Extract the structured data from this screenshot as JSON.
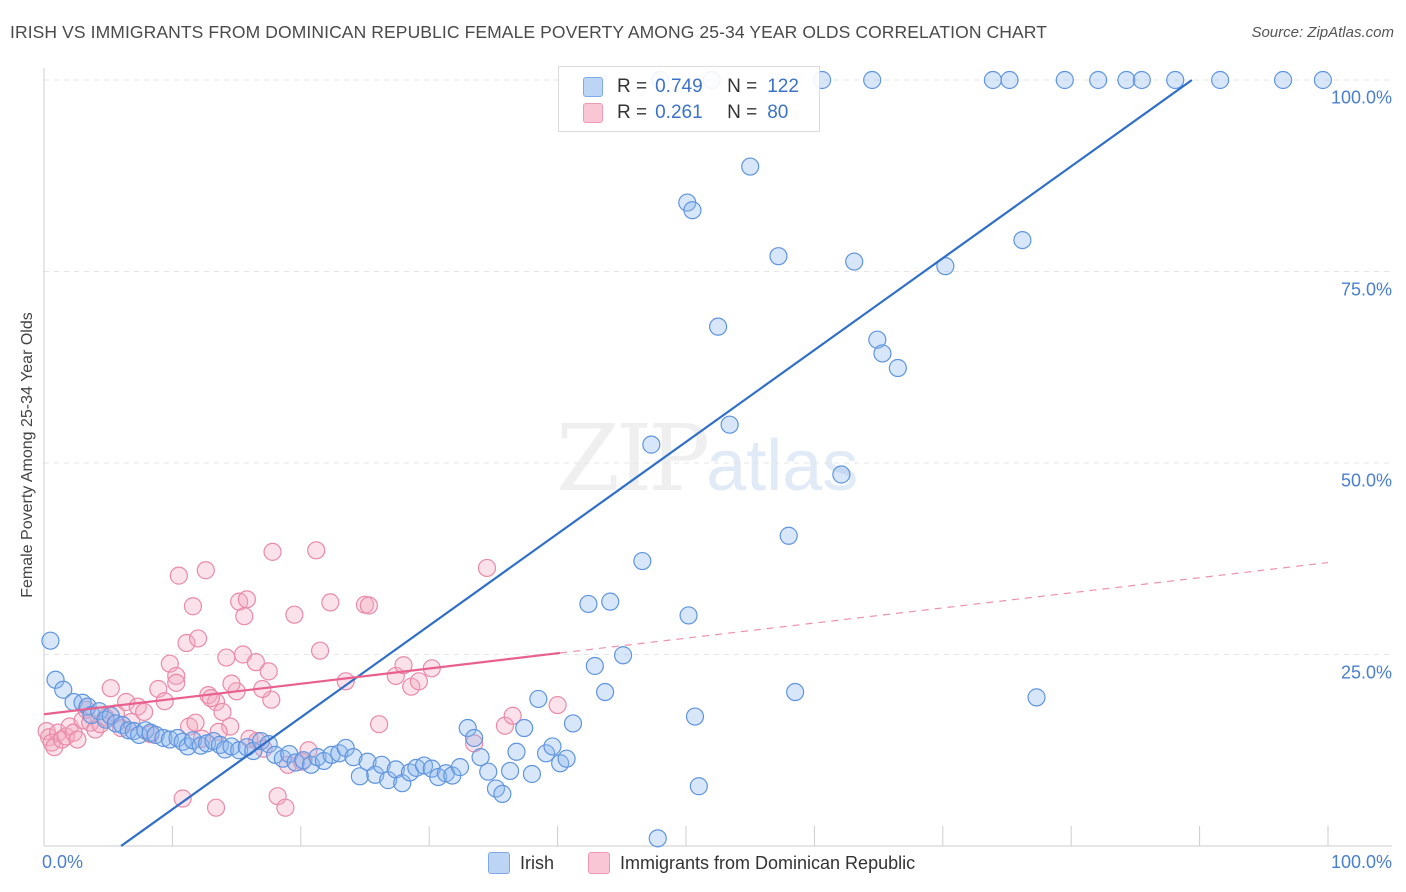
{
  "title": "IRISH VS IMMIGRANTS FROM DOMINICAN REPUBLIC FEMALE POVERTY AMONG 25-34 YEAR OLDS CORRELATION CHART",
  "source": "Source: ZipAtlas.com",
  "watermark": {
    "zip": "ZIP",
    "atlas": "atlas"
  },
  "colors": {
    "irish": "#8fb8ee",
    "irish_line": "#2f6fca",
    "dominican": "#f4a9c0",
    "dominican_line": "#e8608e",
    "tick_text": "#4a7fd0",
    "grid": "#e4e4e4"
  },
  "legend_top": [
    {
      "r_label": "R =",
      "r_value": "0.749",
      "n_label": "N =",
      "n_value": "122"
    },
    {
      "r_label": "R =",
      "r_value": "0.261",
      "n_label": "N =",
      "n_value": "80"
    }
  ],
  "chart_data": {
    "type": "scatter",
    "title": "IRISH VS IMMIGRANTS FROM DOMINICAN REPUBLIC FEMALE POVERTY AMONG 25-34 YEAR OLDS CORRELATION CHART",
    "xlabel": "",
    "ylabel": "Female Poverty Among 25-34 Year Olds",
    "xlim": [
      0,
      100
    ],
    "ylim": [
      0,
      100
    ],
    "x_ticks": [
      "0.0%",
      "100.0%"
    ],
    "y_ticks": [
      {
        "value": 100,
        "label": "100.0%"
      },
      {
        "value": 75,
        "label": "75.0%"
      },
      {
        "value": 50,
        "label": "50.0%"
      },
      {
        "value": 25,
        "label": "25.0%"
      }
    ],
    "grid": true,
    "legend_position": "bottom",
    "series": [
      {
        "name": "Irish",
        "r": 0.749,
        "n": 122,
        "trend": {
          "x1": 6,
          "y1": 0,
          "x2": 89.4,
          "y2": 100,
          "style": "solid"
        },
        "points": [
          [
            0.5,
            26.8
          ],
          [
            0.9,
            21.7
          ],
          [
            1.5,
            20.4
          ],
          [
            2.3,
            18.8
          ],
          [
            3.0,
            18.7
          ],
          [
            3.4,
            18.2
          ],
          [
            3.7,
            17.1
          ],
          [
            4.3,
            17.6
          ],
          [
            4.8,
            16.5
          ],
          [
            5.2,
            17.0
          ],
          [
            5.6,
            16.0
          ],
          [
            6.1,
            15.8
          ],
          [
            6.6,
            15.1
          ],
          [
            7.0,
            15.0
          ],
          [
            7.4,
            14.5
          ],
          [
            7.9,
            15.1
          ],
          [
            8.3,
            14.8
          ],
          [
            8.7,
            14.5
          ],
          [
            9.3,
            14.1
          ],
          [
            9.8,
            13.9
          ],
          [
            10.4,
            14.1
          ],
          [
            10.8,
            13.6
          ],
          [
            11.2,
            13.0
          ],
          [
            11.6,
            13.8
          ],
          [
            12.2,
            13.1
          ],
          [
            12.7,
            13.4
          ],
          [
            13.2,
            13.7
          ],
          [
            13.7,
            13.2
          ],
          [
            14.1,
            12.6
          ],
          [
            14.6,
            13.0
          ],
          [
            15.2,
            12.5
          ],
          [
            15.8,
            12.9
          ],
          [
            16.3,
            12.4
          ],
          [
            16.9,
            13.7
          ],
          [
            17.5,
            13.3
          ],
          [
            18.0,
            11.9
          ],
          [
            18.6,
            11.4
          ],
          [
            19.1,
            12.0
          ],
          [
            19.6,
            10.9
          ],
          [
            20.2,
            11.2
          ],
          [
            20.8,
            10.6
          ],
          [
            21.3,
            11.6
          ],
          [
            21.8,
            11.1
          ],
          [
            22.4,
            11.9
          ],
          [
            23.0,
            12.1
          ],
          [
            23.5,
            12.8
          ],
          [
            24.1,
            11.6
          ],
          [
            24.6,
            9.1
          ],
          [
            25.2,
            11.0
          ],
          [
            25.8,
            9.3
          ],
          [
            26.3,
            10.6
          ],
          [
            26.8,
            8.6
          ],
          [
            27.4,
            10.0
          ],
          [
            27.9,
            8.2
          ],
          [
            28.5,
            9.6
          ],
          [
            29.0,
            10.2
          ],
          [
            29.6,
            10.5
          ],
          [
            30.2,
            10.1
          ],
          [
            30.7,
            9.0
          ],
          [
            31.3,
            9.5
          ],
          [
            31.8,
            9.2
          ],
          [
            32.4,
            10.3
          ],
          [
            33.0,
            15.4
          ],
          [
            33.5,
            14.1
          ],
          [
            34.0,
            11.6
          ],
          [
            34.6,
            9.7
          ],
          [
            35.2,
            7.5
          ],
          [
            35.7,
            6.8
          ],
          [
            36.3,
            9.8
          ],
          [
            36.8,
            12.3
          ],
          [
            37.4,
            15.4
          ],
          [
            38.0,
            9.4
          ],
          [
            38.5,
            19.2
          ],
          [
            39.1,
            12.1
          ],
          [
            39.6,
            13.0
          ],
          [
            40.2,
            10.8
          ],
          [
            40.7,
            11.4
          ],
          [
            41.2,
            16.0
          ],
          [
            42.4,
            31.6
          ],
          [
            42.9,
            23.5
          ],
          [
            43.7,
            20.1
          ],
          [
            44.1,
            31.9
          ],
          [
            45.1,
            24.9
          ],
          [
            46.6,
            37.2
          ],
          [
            47.8,
            1.0
          ],
          [
            50.2,
            30.1
          ],
          [
            50.7,
            16.9
          ],
          [
            51.0,
            7.8
          ],
          [
            47.3,
            52.4
          ],
          [
            48.0,
            100
          ],
          [
            50.1,
            84.0
          ],
          [
            50.5,
            83.0
          ],
          [
            52.0,
            100
          ],
          [
            52.5,
            67.8
          ],
          [
            53.4,
            55.0
          ],
          [
            55.0,
            88.7
          ],
          [
            57.2,
            77.0
          ],
          [
            58.0,
            40.5
          ],
          [
            58.5,
            20.1
          ],
          [
            60.6,
            100
          ],
          [
            62.1,
            48.5
          ],
          [
            63.1,
            76.3
          ],
          [
            64.5,
            100
          ],
          [
            64.9,
            66.1
          ],
          [
            65.3,
            64.3
          ],
          [
            66.5,
            62.4
          ],
          [
            70.2,
            75.7
          ],
          [
            73.9,
            100
          ],
          [
            75.2,
            100
          ],
          [
            76.2,
            79.1
          ],
          [
            77.3,
            19.4
          ],
          [
            79.5,
            100
          ],
          [
            82.1,
            100
          ],
          [
            84.3,
            100
          ],
          [
            85.5,
            100
          ],
          [
            88.1,
            100
          ],
          [
            91.6,
            100
          ],
          [
            96.5,
            100
          ],
          [
            99.6,
            100
          ]
        ]
      },
      {
        "name": "Immigrants from Dominican Republic",
        "r": 0.261,
        "n": 80,
        "trend": {
          "x1": 0,
          "y1": 17.2,
          "x2": 40.2,
          "y2": 25.2,
          "x_ext": 100,
          "y_ext": 37.0,
          "style": "solid then dashed"
        },
        "points": [
          [
            0.2,
            15.0
          ],
          [
            0.4,
            14.2
          ],
          [
            0.6,
            13.5
          ],
          [
            0.8,
            12.9
          ],
          [
            1.1,
            14.8
          ],
          [
            1.4,
            13.9
          ],
          [
            1.7,
            14.3
          ],
          [
            2.0,
            15.6
          ],
          [
            2.3,
            14.8
          ],
          [
            2.6,
            13.9
          ],
          [
            3.0,
            16.4
          ],
          [
            3.3,
            17.8
          ],
          [
            3.6,
            16.1
          ],
          [
            4.0,
            15.2
          ],
          [
            4.4,
            15.9
          ],
          [
            4.8,
            16.8
          ],
          [
            5.2,
            20.6
          ],
          [
            5.6,
            17.3
          ],
          [
            6.0,
            15.4
          ],
          [
            6.4,
            18.8
          ],
          [
            6.8,
            16.2
          ],
          [
            7.3,
            18.2
          ],
          [
            7.8,
            17.5
          ],
          [
            8.3,
            14.6
          ],
          [
            8.9,
            20.5
          ],
          [
            9.4,
            18.9
          ],
          [
            9.8,
            23.8
          ],
          [
            10.3,
            22.2
          ],
          [
            10.8,
            6.2
          ],
          [
            11.3,
            15.6
          ],
          [
            11.8,
            16.1
          ],
          [
            12.3,
            14.0
          ],
          [
            12.8,
            19.7
          ],
          [
            13.4,
            18.8
          ],
          [
            13.9,
            17.5
          ],
          [
            14.5,
            15.6
          ],
          [
            15.0,
            20.2
          ],
          [
            15.5,
            25.0
          ],
          [
            16.0,
            14.0
          ],
          [
            16.6,
            13.7
          ],
          [
            17.1,
            12.7
          ],
          [
            17.7,
            19.1
          ],
          [
            18.2,
            6.5
          ],
          [
            18.8,
            5.0
          ],
          [
            10.3,
            21.3
          ],
          [
            10.5,
            35.3
          ],
          [
            11.1,
            26.5
          ],
          [
            11.6,
            31.3
          ],
          [
            12.0,
            27.1
          ],
          [
            12.6,
            36.0
          ],
          [
            13.0,
            19.3
          ],
          [
            13.4,
            5.0
          ],
          [
            13.6,
            14.9
          ],
          [
            14.2,
            24.6
          ],
          [
            14.6,
            21.2
          ],
          [
            15.2,
            31.9
          ],
          [
            15.6,
            30.0
          ],
          [
            15.8,
            32.2
          ],
          [
            16.5,
            24.0
          ],
          [
            17.0,
            20.5
          ],
          [
            17.5,
            22.8
          ],
          [
            17.8,
            38.4
          ],
          [
            19.0,
            10.6
          ],
          [
            19.5,
            30.2
          ],
          [
            20.1,
            11.0
          ],
          [
            20.6,
            12.5
          ],
          [
            21.2,
            38.6
          ],
          [
            21.5,
            25.5
          ],
          [
            22.3,
            31.8
          ],
          [
            23.5,
            21.5
          ],
          [
            25.0,
            31.5
          ],
          [
            25.3,
            31.4
          ],
          [
            26.1,
            15.9
          ],
          [
            27.4,
            22.2
          ],
          [
            28.0,
            23.6
          ],
          [
            28.6,
            20.8
          ],
          [
            29.2,
            21.5
          ],
          [
            33.5,
            13.4
          ],
          [
            34.5,
            36.3
          ],
          [
            35.9,
            15.7
          ],
          [
            36.5,
            17.0
          ],
          [
            40.0,
            18.4
          ],
          [
            30.2,
            23.2
          ]
        ]
      }
    ]
  }
}
